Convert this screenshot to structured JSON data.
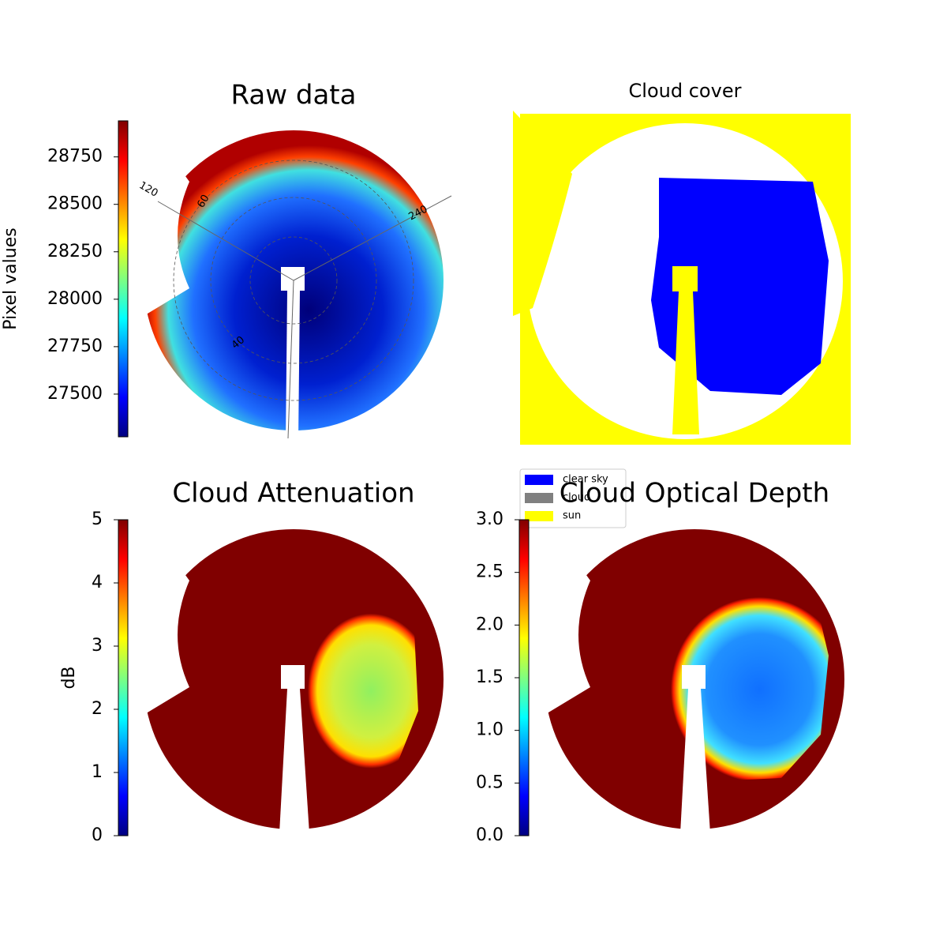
{
  "chart_data": [
    {
      "type": "image",
      "title": "Raw data",
      "colorbar_label": "Pixel values",
      "colormap": "jet",
      "ylim": [
        27275,
        28940
      ],
      "yticks": [
        27500,
        27750,
        28000,
        28250,
        28500,
        28750
      ],
      "polar_labels": [
        "120",
        "60",
        "240",
        "40"
      ]
    },
    {
      "type": "categorical-image",
      "title": "Cloud cover",
      "series": [
        {
          "name": "clear sky",
          "color": "#0000ff"
        },
        {
          "name": "cloud",
          "color": "#808080"
        },
        {
          "name": "sun",
          "color": "#ffff00"
        }
      ]
    },
    {
      "type": "image",
      "title": "Cloud Attenuation",
      "colorbar_label": "dB",
      "colormap": "jet",
      "ylim": [
        0,
        5
      ],
      "yticks": [
        0,
        1,
        2,
        3,
        4,
        5
      ]
    },
    {
      "type": "image",
      "title": "Cloud Optical Depth",
      "colormap": "jet",
      "ylim": [
        0,
        3
      ],
      "yticks": [
        {
          "value": 0,
          "label": "0.0"
        },
        0.5,
        {
          "value": 1,
          "label": "1.0"
        },
        1.5,
        {
          "value": 2,
          "label": "2.0"
        },
        2.5,
        {
          "value": 3,
          "label": "3.0"
        }
      ]
    }
  ]
}
